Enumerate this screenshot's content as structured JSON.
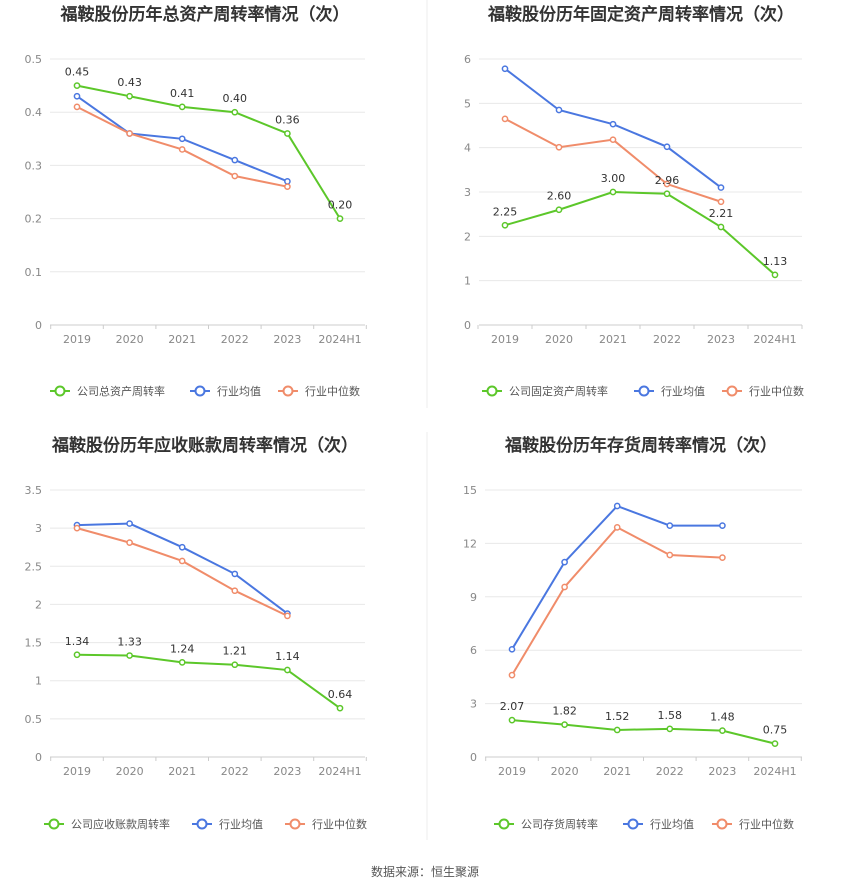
{
  "source_text": "数据来源：恒生聚源",
  "colors": {
    "company": "#5cc72a",
    "industry_avg": "#4a77e0",
    "industry_median": "#f08c6a",
    "grid": "#e8e8e8",
    "axis": "#cccccc",
    "divider": "#eeeeee"
  },
  "chart_data": [
    {
      "type": "line",
      "title": "福鞍股份历年总资产周转率情况（次）",
      "categories": [
        "2019",
        "2020",
        "2021",
        "2022",
        "2023",
        "2024H1"
      ],
      "yticks": [
        "0",
        "0.1",
        "0.2",
        "0.3",
        "0.4",
        "0.5"
      ],
      "ylim": [
        0,
        0.5
      ],
      "grid": true,
      "legend_position": "bottom",
      "series": [
        {
          "name": "公司总资产周转率",
          "key": "company",
          "values": [
            0.45,
            0.43,
            0.41,
            0.4,
            0.36,
            0.2
          ],
          "labels": [
            "0.45",
            "0.43",
            "0.41",
            "0.40",
            "0.36",
            "0.20"
          ]
        },
        {
          "name": "行业均值",
          "key": "industry_avg",
          "values": [
            0.43,
            0.36,
            0.35,
            0.31,
            0.27,
            null
          ]
        },
        {
          "name": "行业中位数",
          "key": "industry_median",
          "values": [
            0.41,
            0.36,
            0.33,
            0.28,
            0.26,
            null
          ]
        }
      ]
    },
    {
      "type": "line",
      "title": "福鞍股份历年固定资产周转率情况（次）",
      "categories": [
        "2019",
        "2020",
        "2021",
        "2022",
        "2023",
        "2024H1"
      ],
      "yticks": [
        "0",
        "1",
        "2",
        "3",
        "4",
        "5",
        "6"
      ],
      "ylim": [
        0,
        6
      ],
      "grid": true,
      "legend_position": "bottom",
      "series": [
        {
          "name": "公司固定资产周转率",
          "key": "company",
          "values": [
            2.25,
            2.6,
            3.0,
            2.96,
            2.21,
            1.13
          ],
          "labels": [
            "2.25",
            "2.60",
            "3.00",
            "2.96",
            "2.21",
            "1.13"
          ]
        },
        {
          "name": "行业均值",
          "key": "industry_avg",
          "values": [
            5.78,
            4.85,
            4.53,
            4.02,
            3.1,
            null
          ]
        },
        {
          "name": "行业中位数",
          "key": "industry_median",
          "values": [
            4.65,
            4.01,
            4.18,
            3.18,
            2.78,
            null
          ]
        }
      ]
    },
    {
      "type": "line",
      "title": "福鞍股份历年应收账款周转率情况（次）",
      "categories": [
        "2019",
        "2020",
        "2021",
        "2022",
        "2023",
        "2024H1"
      ],
      "yticks": [
        "0",
        "0.5",
        "1",
        "1.5",
        "2",
        "2.5",
        "3",
        "3.5"
      ],
      "ylim": [
        0,
        3.5
      ],
      "grid": true,
      "legend_position": "bottom",
      "series": [
        {
          "name": "公司应收账款周转率",
          "key": "company",
          "values": [
            1.34,
            1.33,
            1.24,
            1.21,
            1.14,
            0.64
          ],
          "labels": [
            "1.34",
            "1.33",
            "1.24",
            "1.21",
            "1.14",
            "0.64"
          ]
        },
        {
          "name": "行业均值",
          "key": "industry_avg",
          "values": [
            3.04,
            3.06,
            2.75,
            2.4,
            1.88,
            null
          ]
        },
        {
          "name": "行业中位数",
          "key": "industry_median",
          "values": [
            3.0,
            2.81,
            2.57,
            2.18,
            1.85,
            null
          ]
        }
      ]
    },
    {
      "type": "line",
      "title": "福鞍股份历年存货周转率情况（次）",
      "categories": [
        "2019",
        "2020",
        "2021",
        "2022",
        "2023",
        "2024H1"
      ],
      "yticks": [
        "0",
        "3",
        "6",
        "9",
        "12",
        "15"
      ],
      "ylim": [
        0,
        15
      ],
      "grid": true,
      "legend_position": "bottom",
      "series": [
        {
          "name": "公司存货周转率",
          "key": "company",
          "values": [
            2.07,
            1.82,
            1.52,
            1.58,
            1.48,
            0.75
          ],
          "labels": [
            "2.07",
            "1.82",
            "1.52",
            "1.58",
            "1.48",
            "0.75"
          ]
        },
        {
          "name": "行业均值",
          "key": "industry_avg",
          "values": [
            6.05,
            10.95,
            14.1,
            13.0,
            13.0,
            null
          ]
        },
        {
          "name": "行业中位数",
          "key": "industry_median",
          "values": [
            4.6,
            9.55,
            12.9,
            11.35,
            11.2,
            null
          ]
        }
      ]
    }
  ]
}
